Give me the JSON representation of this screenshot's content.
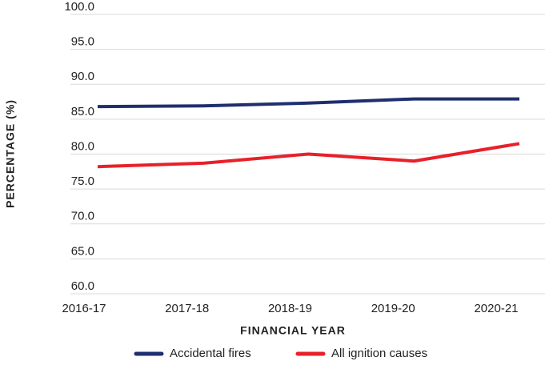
{
  "chart_data": {
    "type": "line",
    "x_label": "FINANCIAL YEAR",
    "y_label": "PERCENTAGE (%)",
    "categories": [
      "2016-17",
      "2017-18",
      "2018-19",
      "2019-20",
      "2020-21"
    ],
    "series": [
      {
        "name": "Accidental fires",
        "color": "#1f2f6e",
        "values": [
          86.8,
          86.9,
          87.3,
          87.9,
          87.9
        ]
      },
      {
        "name": "All ignition causes",
        "color": "#e8202a",
        "values": [
          78.2,
          78.7,
          80.0,
          79.0,
          81.5
        ]
      }
    ],
    "ylim": [
      60,
      100
    ],
    "yticks": [
      {
        "value": 60,
        "label": "60.0"
      },
      {
        "value": 65,
        "label": "65.0"
      },
      {
        "value": 70,
        "label": "70.0"
      },
      {
        "value": 75,
        "label": "75.0"
      },
      {
        "value": 80,
        "label": "80.0"
      },
      {
        "value": 85,
        "label": "85.0"
      },
      {
        "value": 90,
        "label": "90.0"
      },
      {
        "value": 95,
        "label": "95.0"
      },
      {
        "value": 100,
        "label": "100.0"
      }
    ],
    "grid": true,
    "legend": "bottom"
  }
}
